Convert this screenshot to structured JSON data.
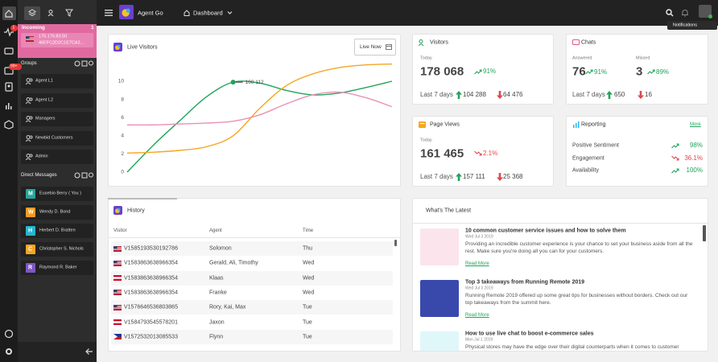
{
  "sidebar": {
    "pulse_badge": "1",
    "chat_badge": "99+"
  },
  "incoming": {
    "title": "Incoming",
    "count": "1",
    "ip": "175.176.83.50",
    "id": "46EFC2D2C1E7CA2..."
  },
  "groups": {
    "title": "Groups",
    "items": [
      "Agent L1",
      "Agent L2",
      "Managers",
      "Newbid Customers",
      "Admin"
    ]
  },
  "direct_messages": {
    "title": "Direct Messages",
    "items": [
      {
        "initial": "M",
        "name": "Eusebio Berry ( You )",
        "color": "#26a69a"
      },
      {
        "initial": "W",
        "name": "Wendy D. Bond",
        "color": "#f59b22"
      },
      {
        "initial": "H",
        "name": "Herbert D. Bratten",
        "color": "#26b5cf"
      },
      {
        "initial": "C",
        "name": "Christopher S. Nichols",
        "color": "#f5a623"
      },
      {
        "initial": "R",
        "name": "Raymond R. Baker",
        "color": "#7e57c2"
      }
    ]
  },
  "topbar": {
    "brand": "Agent Go",
    "menu": "Dashboard",
    "tooltip": "Notifications"
  },
  "live_visitors": {
    "title": "Live Visitors",
    "button": "Live Now",
    "tooltip": "100 112",
    "categories": [
      null,
      null,
      null,
      null,
      null,
      null,
      null,
      null,
      null,
      null,
      null
    ],
    "ylim": [
      -0.5,
      12
    ],
    "yticks": [
      0,
      2,
      4,
      6,
      8,
      10
    ],
    "series": [
      {
        "color": "#22a35a",
        "values": [
          0,
          3,
          5.7,
          8.3,
          9.9,
          9.8,
          9.0,
          8.5,
          8.7,
          9.3,
          10
        ]
      },
      {
        "color": "#f5a623",
        "values": [
          2.1,
          2.2,
          2.4,
          2.8,
          4.0,
          7.0,
          9.5,
          10.8,
          11.5,
          11.8,
          11.9
        ]
      },
      {
        "color": "#e991b8",
        "values": [
          5.2,
          5.2,
          5.3,
          5.4,
          5.6,
          6.3,
          7.5,
          8.5,
          8.8,
          8.2,
          7.2
        ]
      }
    ]
  },
  "visitors": {
    "title": "Visitors",
    "today": "Today",
    "value": "178 068",
    "change": "91%",
    "period": "Last 7 days",
    "up": "104 288",
    "down": "64 476"
  },
  "chats": {
    "title": "Chats",
    "answered_label": "Answered",
    "answered": "76",
    "answered_change": "91%",
    "missed_label": "Missed",
    "missed": "3",
    "missed_change": "89%",
    "period": "Last 7 days",
    "up": "650",
    "down": "16"
  },
  "page_views": {
    "title": "Page Views",
    "today": "Today",
    "value": "161 465",
    "change": "2.1%",
    "period": "Last 7 days",
    "up": "157 111",
    "down": "25 368"
  },
  "reporting": {
    "title": "Reporting",
    "link": "More",
    "rows": [
      {
        "label": "Positive Sentiment",
        "value": "98%",
        "trend": "up"
      },
      {
        "label": "Engagement",
        "value": "36.1%",
        "trend": "down"
      },
      {
        "label": "Availability",
        "value": "100%",
        "trend": "up"
      }
    ]
  },
  "history": {
    "title": "History",
    "columns": [
      "Visitor",
      "Agent",
      "Time"
    ],
    "rows": [
      [
        "V1585193530192786",
        "Solomon",
        "Thu"
      ],
      [
        "V1583863638966354",
        "Gerald, Ali, Timothy",
        "Wed"
      ],
      [
        "V1583863638966354",
        "Klaas",
        "Wed"
      ],
      [
        "V1583863638966354",
        "Franke",
        "Wed"
      ],
      [
        "V1576646536803865",
        "Rory, Kai, Max",
        "Tue"
      ],
      [
        "V1584793545578201",
        "Jaxon",
        "Tue"
      ],
      [
        "V1572532013085533",
        "Flynn",
        "Tue"
      ]
    ]
  },
  "latest": {
    "title": "What's The Latest",
    "articles": [
      {
        "title": "10 common customer service issues and how to solve them",
        "date": "Wed Jul 3 2019",
        "text": "Providing an incredible customer experience is your chance to set your business aside from all the rest. Make sure you're doing all you can for your customers.",
        "link": "Read More"
      },
      {
        "title": "Top 3 takeaways from Running Remote 2019",
        "date": "Wed Jul 3 2019",
        "text": "Running Remote 2019 offered up some great tips for businesses without borders. Check out our top takeaways from the summit here.",
        "link": "Read More"
      },
      {
        "title": "How to use live chat to boost e-commerce sales",
        "date": "Mon Jul 1 2019",
        "text": "Physical stores may have the edge over their digital counterparts when it comes to customer service but live"
      }
    ]
  }
}
